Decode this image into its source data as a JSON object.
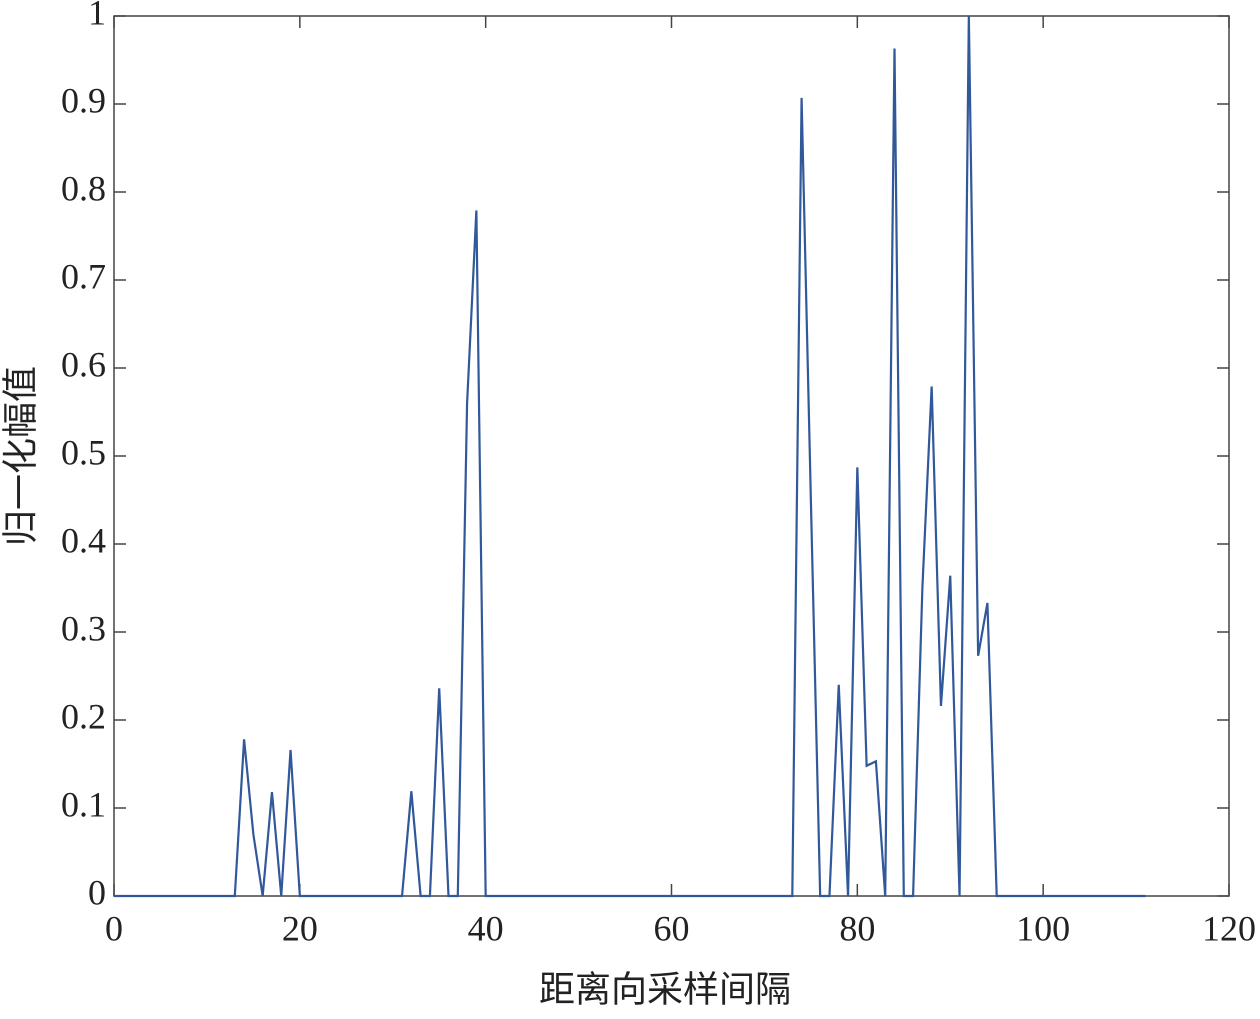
{
  "chart_data": {
    "type": "line",
    "xlabel": "距离向采样间隔",
    "ylabel": "归一化幅值",
    "x": [
      0,
      1,
      2,
      3,
      4,
      5,
      6,
      7,
      8,
      9,
      10,
      11,
      12,
      13,
      14,
      15,
      16,
      17,
      18,
      19,
      20,
      21,
      22,
      23,
      24,
      25,
      26,
      27,
      28,
      29,
      30,
      31,
      32,
      33,
      34,
      35,
      36,
      37,
      38,
      39,
      40,
      41,
      42,
      43,
      44,
      45,
      46,
      47,
      48,
      49,
      50,
      51,
      52,
      53,
      54,
      55,
      56,
      57,
      58,
      59,
      60,
      61,
      62,
      63,
      64,
      65,
      66,
      67,
      68,
      69,
      70,
      71,
      72,
      73,
      74,
      75,
      76,
      77,
      78,
      79,
      80,
      81,
      82,
      83,
      84,
      85,
      86,
      87,
      88,
      89,
      90,
      91,
      92,
      93,
      94,
      95,
      96,
      97,
      98,
      99,
      100,
      101,
      102,
      103,
      104,
      105,
      106,
      107,
      108,
      109,
      110,
      111
    ],
    "values": [
      0,
      0,
      0,
      0,
      0,
      0,
      0,
      0,
      0,
      0,
      0,
      0,
      0,
      0,
      0.178,
      0.07,
      0,
      0.118,
      0,
      0.166,
      0,
      0,
      0,
      0,
      0,
      0,
      0,
      0,
      0,
      0,
      0,
      0,
      0.119,
      0,
      0,
      0.236,
      0,
      0,
      0.56,
      0.779,
      0,
      0,
      0,
      0,
      0,
      0,
      0,
      0,
      0,
      0,
      0,
      0,
      0,
      0,
      0,
      0,
      0,
      0,
      0,
      0,
      0,
      0,
      0,
      0,
      0,
      0,
      0,
      0,
      0,
      0,
      0,
      0,
      0,
      0,
      0.907,
      0.45,
      0,
      0,
      0.24,
      0,
      0.487,
      0.148,
      0.153,
      0,
      0.963,
      0,
      0,
      0.35,
      0.579,
      0.216,
      0.364,
      0,
      1,
      0.273,
      0.333,
      0,
      0,
      0,
      0,
      0,
      0,
      0,
      0,
      0,
      0,
      0,
      0,
      0,
      0,
      0,
      0,
      0
    ],
    "color": "#30589a",
    "xlim": [
      0,
      120
    ],
    "xticks": [
      0,
      20,
      40,
      60,
      80,
      100,
      120
    ],
    "ylim": [
      0,
      1
    ],
    "yticks": [
      0,
      0.1,
      0.2,
      0.3,
      0.4,
      0.5,
      0.6,
      0.7,
      0.8,
      0.9,
      1
    ]
  }
}
